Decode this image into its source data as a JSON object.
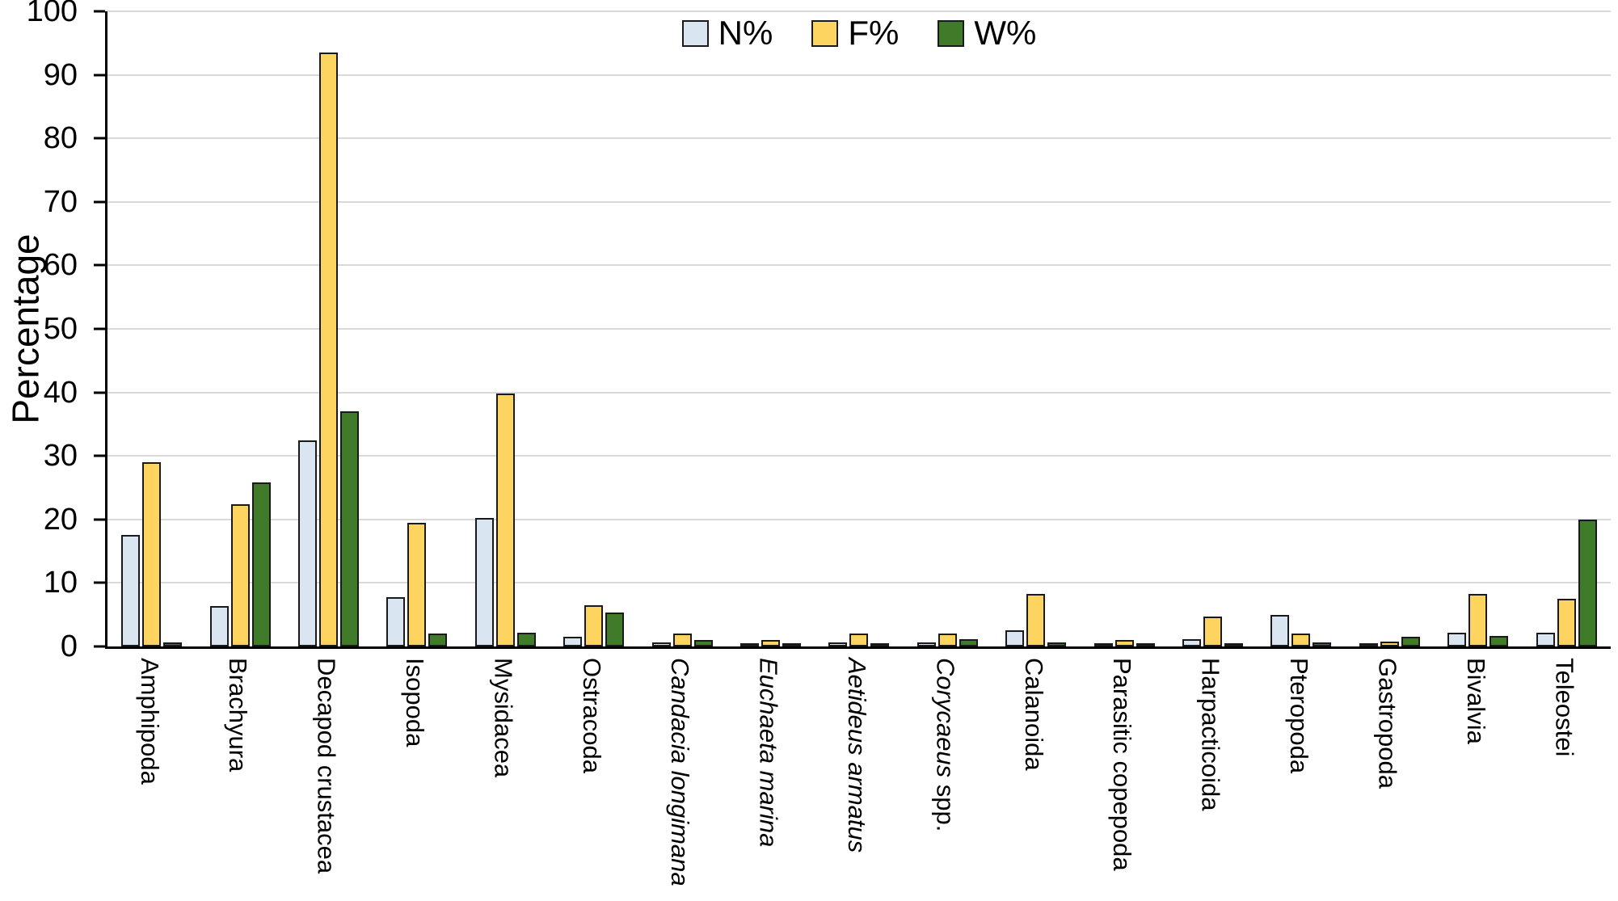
{
  "chart_data": {
    "type": "bar",
    "title": "",
    "xlabel": "",
    "ylabel": "Percentage",
    "ylim": [
      0,
      100
    ],
    "yticks": [
      0,
      10,
      20,
      30,
      40,
      50,
      60,
      70,
      80,
      90,
      100
    ],
    "grid": "horizontal",
    "legend_position": "top-center",
    "categories": [
      [
        {
          "text": "Amphipoda",
          "italic": false
        }
      ],
      [
        {
          "text": "Brachyura",
          "italic": false
        }
      ],
      [
        {
          "text": "Decapod crustacea",
          "italic": false
        }
      ],
      [
        {
          "text": "Isopoda",
          "italic": false
        }
      ],
      [
        {
          "text": "Mysidacea",
          "italic": false
        }
      ],
      [
        {
          "text": "Ostracoda",
          "italic": false
        }
      ],
      [
        {
          "text": "Candacia longimana",
          "italic": true
        }
      ],
      [
        {
          "text": "Euchaeta marina",
          "italic": true
        }
      ],
      [
        {
          "text": "Aetideus armatus",
          "italic": true
        }
      ],
      [
        {
          "text": "Corycaeus",
          "italic": true
        },
        {
          "text": " spp.",
          "italic": false
        }
      ],
      [
        {
          "text": "Calanoida",
          "italic": false
        }
      ],
      [
        {
          "text": "Parasitic copepoda",
          "italic": false
        }
      ],
      [
        {
          "text": "Harpacticoida",
          "italic": false
        }
      ],
      [
        {
          "text": "Pteropoda",
          "italic": false
        }
      ],
      [
        {
          "text": "Gastropoda",
          "italic": false
        }
      ],
      [
        {
          "text": "Bivalvia",
          "italic": false
        }
      ],
      [
        {
          "text": "Teleostei",
          "italic": false
        }
      ]
    ],
    "series": [
      {
        "name": "N%",
        "color": "#d9e6f2",
        "values": [
          17.5,
          6.3,
          32.4,
          7.8,
          20.2,
          1.5,
          0.7,
          0.5,
          0.7,
          0.7,
          2.5,
          0.4,
          1.2,
          5.0,
          0.4,
          2.2,
          2.2
        ]
      },
      {
        "name": "F%",
        "color": "#fcd45f",
        "values": [
          29.0,
          22.4,
          93.5,
          19.5,
          39.8,
          6.5,
          2.0,
          1.0,
          2.0,
          2.0,
          8.3,
          1.0,
          4.7,
          2.0,
          0.8,
          8.3,
          7.5
        ]
      },
      {
        "name": "W%",
        "color": "#3f7b29",
        "values": [
          0.6,
          25.8,
          37.0,
          2.0,
          2.2,
          5.3,
          1.0,
          0.4,
          0.5,
          1.2,
          0.7,
          0.4,
          0.3,
          0.7,
          1.5,
          1.6,
          20.0
        ]
      }
    ],
    "colors": {
      "axis": "#000000",
      "bar_border": "#1a1a1a",
      "gridline": "#d9d9d9",
      "background": "#ffffff"
    }
  }
}
